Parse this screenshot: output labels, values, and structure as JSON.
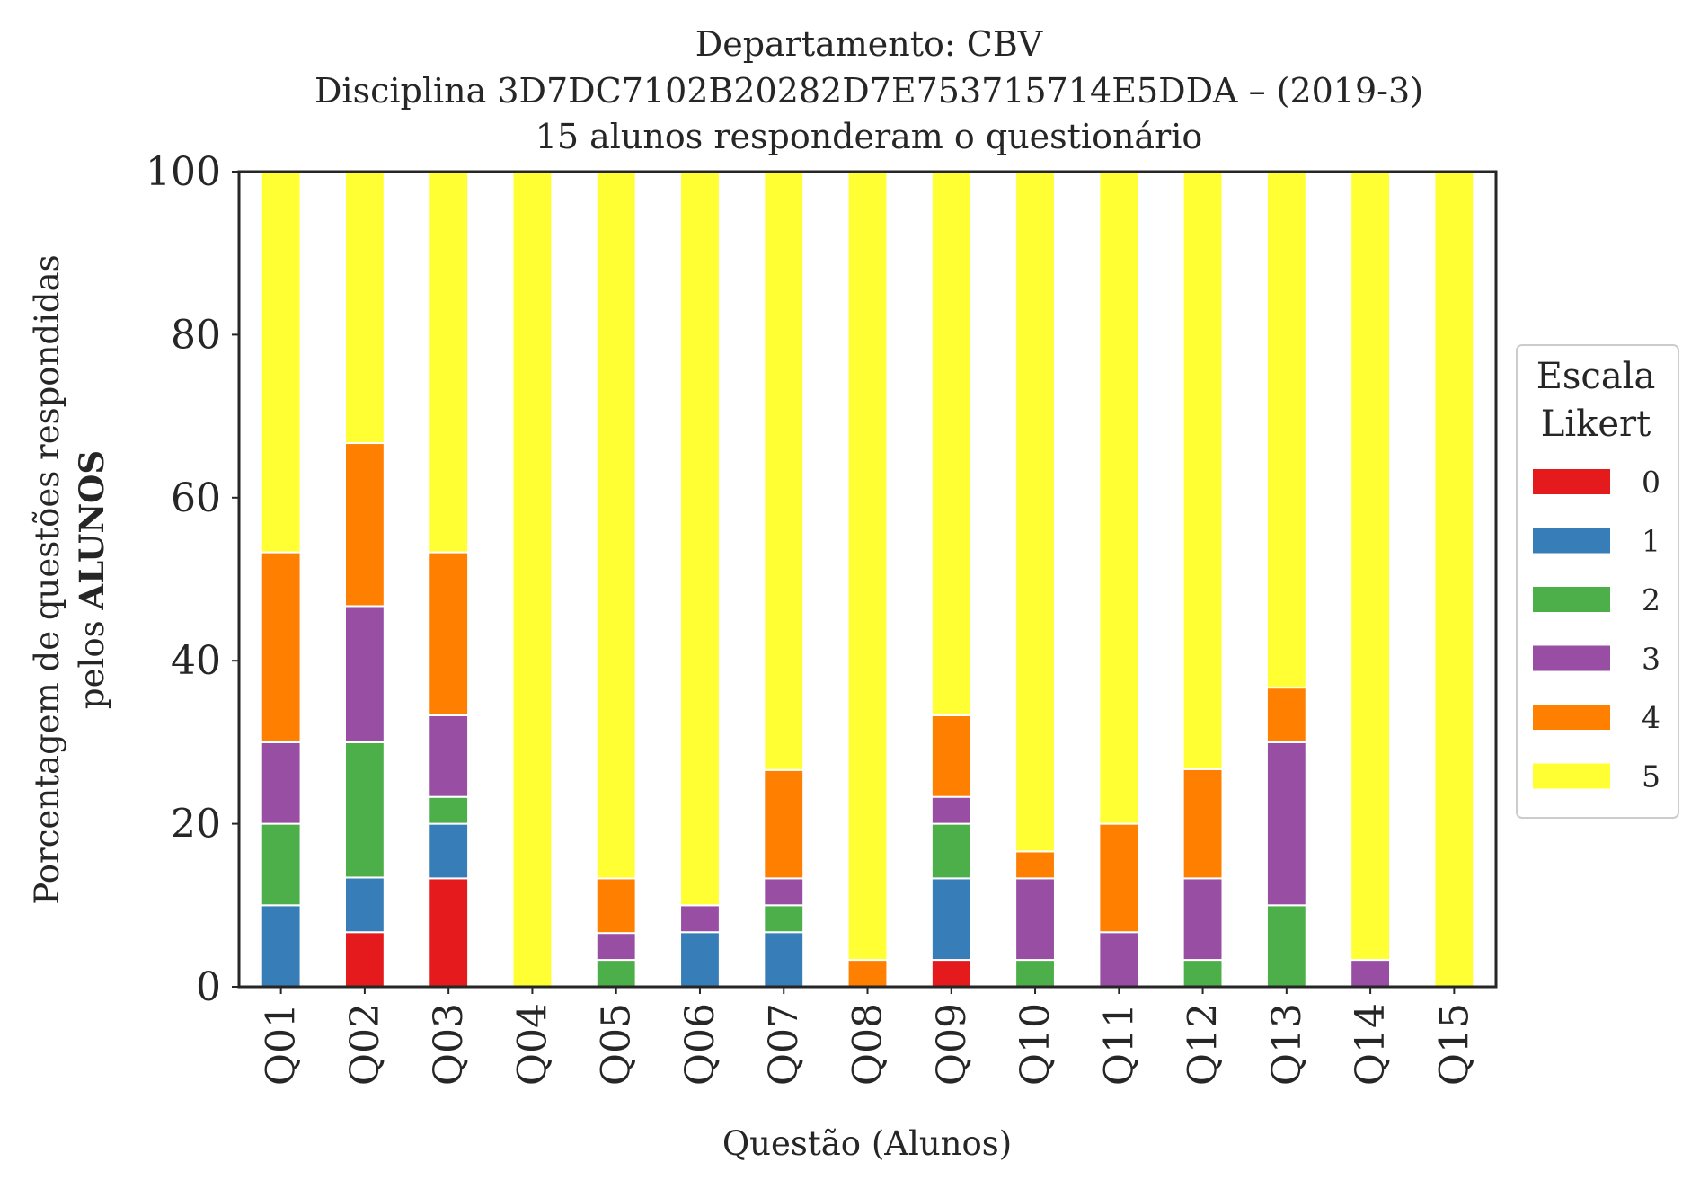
{
  "chart_data": {
    "type": "bar",
    "stacked": true,
    "title_lines": [
      "Departamento: CBV",
      "Disciplina 3D7DC7102B20282D7E753715714E5DDA – (2019-3)",
      "15 alunos responderam o questionário"
    ],
    "xlabel": "Questão (Alunos)",
    "ylabel_line1": "Porcentagem de questões respondidas",
    "ylabel_line2_normal": "pelos ",
    "ylabel_line2_bold": "ALUNOS",
    "ylim": [
      0,
      100
    ],
    "yticks": [
      0,
      20,
      40,
      60,
      80,
      100
    ],
    "categories": [
      "Q01",
      "Q02",
      "Q03",
      "Q04",
      "Q05",
      "Q06",
      "Q07",
      "Q08",
      "Q09",
      "Q10",
      "Q11",
      "Q12",
      "Q13",
      "Q14",
      "Q15"
    ],
    "legend": {
      "title_lines": [
        "Escala",
        "Likert"
      ],
      "placement": "right-outside-center"
    },
    "grid": false,
    "series": [
      {
        "name": "0",
        "color": "#e41a1c",
        "values": [
          0,
          6.7,
          13.3,
          0,
          0,
          0,
          0,
          0,
          3.3,
          0,
          0,
          0,
          0,
          0,
          0
        ]
      },
      {
        "name": "1",
        "color": "#377eb8",
        "values": [
          10,
          6.7,
          6.7,
          0,
          0,
          6.7,
          6.7,
          0,
          10,
          0,
          0,
          0,
          0,
          0,
          0
        ]
      },
      {
        "name": "2",
        "color": "#4daf4a",
        "values": [
          10,
          16.6,
          3.3,
          0,
          3.3,
          0,
          3.3,
          0,
          6.7,
          3.3,
          0,
          3.3,
          10,
          0,
          0
        ]
      },
      {
        "name": "3",
        "color": "#984ea3",
        "values": [
          10,
          16.7,
          10,
          0,
          3.3,
          3.3,
          3.3,
          0,
          3.3,
          10,
          6.7,
          10,
          20,
          3.3,
          0
        ]
      },
      {
        "name": "4",
        "color": "#ff7f00",
        "values": [
          23.3,
          20,
          20,
          0,
          6.7,
          0,
          13.3,
          3.3,
          10,
          3.3,
          13.3,
          13.4,
          6.7,
          0,
          0
        ]
      },
      {
        "name": "5",
        "color": "#ffff33",
        "values": [
          46.7,
          33.3,
          46.7,
          100,
          86.7,
          90,
          73.4,
          96.7,
          66.7,
          83.4,
          80,
          73.3,
          63.3,
          96.7,
          100
        ]
      }
    ]
  }
}
